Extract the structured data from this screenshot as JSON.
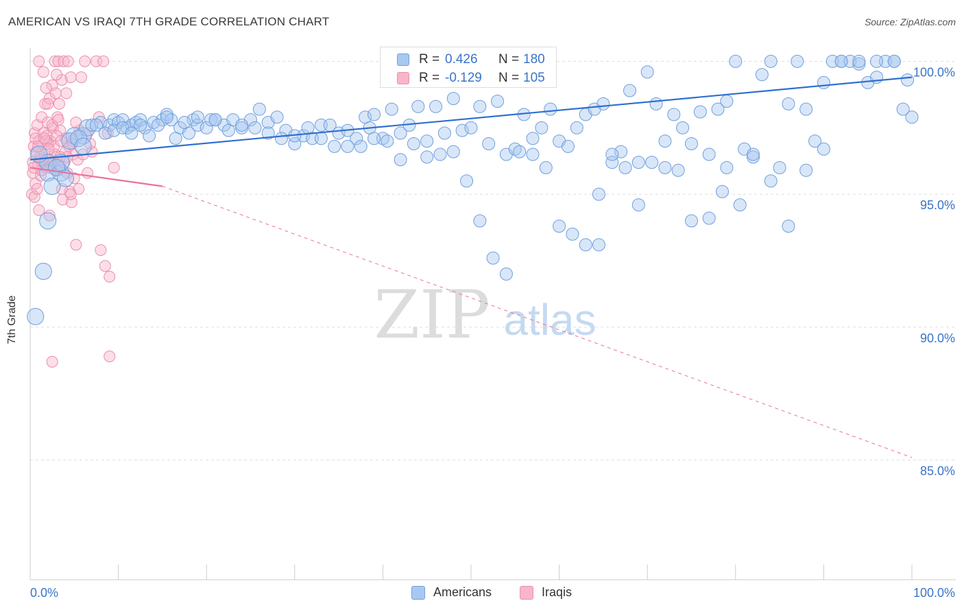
{
  "header": {
    "title": "AMERICAN VS IRAQI 7TH GRADE CORRELATION CHART",
    "source": "Source: ZipAtlas.com"
  },
  "watermark": {
    "zip": "ZIP",
    "atlas": "atlas"
  },
  "colors": {
    "blue_fill": "#a9c8f0",
    "blue_stroke": "#6f9fdc",
    "blue_line": "#2f6fd0",
    "blue_text": "#3a74c8",
    "pink_fill": "#f7b6cb",
    "pink_stroke": "#ec8fac",
    "pink_line": "#e8729c",
    "grid": "#dddddd",
    "axis": "#cccccc"
  },
  "legend_top": {
    "series": [
      {
        "r_label": "R =",
        "r_value": "0.426",
        "n_label": "N =",
        "n_value": "180"
      },
      {
        "r_label": "R =",
        "r_value": "-0.129",
        "n_label": "N =",
        "n_value": "105"
      }
    ]
  },
  "legend_bottom": {
    "items": [
      {
        "label": "Americans"
      },
      {
        "label": "Iraqis"
      }
    ]
  },
  "chart_data": {
    "type": "scatter",
    "title": "AMERICAN VS IRAQI 7TH GRADE CORRELATION CHART",
    "xlabel": "",
    "ylabel": "7th Grade",
    "xlim": [
      0,
      100
    ],
    "ylim": [
      80.5,
      100.5
    ],
    "x_tick_labels": [
      {
        "value": 0,
        "label": "0.0%"
      },
      {
        "value": 100,
        "label": "100.0%"
      }
    ],
    "y_ticks": [
      {
        "value": 100,
        "label": "100.0%"
      },
      {
        "value": 95,
        "label": "95.0%"
      },
      {
        "value": 90,
        "label": "90.0%"
      },
      {
        "value": 85,
        "label": "85.0%"
      }
    ],
    "x_minor_ticks": [
      10,
      20,
      30,
      40,
      50,
      60,
      70,
      80,
      90
    ],
    "series": [
      {
        "name": "Americans",
        "R": 0.426,
        "N": 180,
        "trend": {
          "x": [
            0,
            100
          ],
          "y": [
            96.3,
            99.4
          ],
          "style": "solid"
        },
        "points": [
          [
            0.6,
            90.4
          ],
          [
            1.5,
            92.1
          ],
          [
            2.0,
            94.0
          ],
          [
            2.0,
            95.8
          ],
          [
            2.0,
            96.2
          ],
          [
            2.5,
            95.3
          ],
          [
            3.5,
            95.8
          ],
          [
            3.5,
            96.2
          ],
          [
            5.0,
            97.2
          ],
          [
            6.0,
            97.2
          ],
          [
            6.5,
            97.5
          ],
          [
            7.0,
            97.6
          ],
          [
            8.0,
            97.7
          ],
          [
            9.0,
            97.6
          ],
          [
            9.5,
            97.8
          ],
          [
            10.0,
            97.7
          ],
          [
            10.5,
            97.8
          ],
          [
            11.0,
            97.5
          ],
          [
            11.5,
            97.6
          ],
          [
            12.0,
            97.7
          ],
          [
            12.5,
            97.8
          ],
          [
            13.0,
            97.5
          ],
          [
            14.0,
            97.7
          ],
          [
            15.0,
            97.8
          ],
          [
            15.5,
            98.0
          ],
          [
            16.0,
            97.8
          ],
          [
            17.0,
            97.5
          ],
          [
            18.0,
            97.3
          ],
          [
            18.5,
            97.8
          ],
          [
            19.0,
            97.6
          ],
          [
            20.0,
            97.5
          ],
          [
            20.5,
            97.8
          ],
          [
            21.0,
            97.8
          ],
          [
            22.0,
            97.6
          ],
          [
            23.0,
            97.8
          ],
          [
            24.0,
            97.5
          ],
          [
            25.0,
            97.8
          ],
          [
            26.0,
            98.2
          ],
          [
            27.0,
            97.7
          ],
          [
            28.0,
            97.9
          ],
          [
            29.0,
            97.4
          ],
          [
            30.0,
            96.9
          ],
          [
            31.0,
            97.2
          ],
          [
            32.0,
            97.1
          ],
          [
            33.0,
            97.6
          ],
          [
            34.0,
            97.6
          ],
          [
            35.0,
            97.3
          ],
          [
            36.0,
            97.4
          ],
          [
            37.0,
            97.1
          ],
          [
            38.0,
            97.9
          ],
          [
            38.5,
            97.5
          ],
          [
            39.0,
            98.0
          ],
          [
            40.0,
            97.1
          ],
          [
            41.0,
            98.2
          ],
          [
            42.0,
            97.3
          ],
          [
            43.0,
            97.6
          ],
          [
            44.0,
            98.3
          ],
          [
            45.0,
            97.0
          ],
          [
            46.0,
            98.3
          ],
          [
            47.0,
            97.3
          ],
          [
            48.0,
            98.6
          ],
          [
            49.0,
            97.4
          ],
          [
            50.0,
            97.5
          ],
          [
            51.0,
            98.3
          ],
          [
            52.0,
            96.9
          ],
          [
            53.0,
            98.5
          ],
          [
            54.0,
            96.5
          ],
          [
            55.0,
            96.7
          ],
          [
            56.0,
            98.0
          ],
          [
            57.0,
            97.1
          ],
          [
            58.0,
            97.5
          ],
          [
            59.0,
            98.2
          ],
          [
            60.0,
            97.0
          ],
          [
            61.0,
            96.8
          ],
          [
            62.0,
            97.5
          ],
          [
            63.0,
            98.0
          ],
          [
            64.0,
            98.2
          ],
          [
            64.5,
            95.0
          ],
          [
            65.0,
            98.4
          ],
          [
            66.0,
            96.2
          ],
          [
            67.0,
            96.6
          ],
          [
            68.0,
            98.9
          ],
          [
            69.0,
            96.2
          ],
          [
            70.0,
            99.6
          ],
          [
            71.0,
            98.4
          ],
          [
            72.0,
            97.0
          ],
          [
            73.0,
            98.0
          ],
          [
            74.0,
            97.5
          ],
          [
            75.0,
            96.9
          ],
          [
            76.0,
            98.1
          ],
          [
            77.0,
            96.5
          ],
          [
            78.0,
            98.2
          ],
          [
            78.5,
            95.1
          ],
          [
            79.0,
            98.5
          ],
          [
            80.0,
            100.0
          ],
          [
            81.0,
            96.7
          ],
          [
            82.0,
            96.4
          ],
          [
            83.0,
            99.5
          ],
          [
            84.0,
            100.0
          ],
          [
            85.0,
            96.0
          ],
          [
            86.0,
            98.4
          ],
          [
            87.0,
            100.0
          ],
          [
            88.0,
            98.2
          ],
          [
            89.0,
            97.0
          ],
          [
            90.0,
            96.7
          ],
          [
            91.0,
            100.0
          ],
          [
            92.0,
            100.0
          ],
          [
            93.0,
            100.0
          ],
          [
            94.0,
            99.9
          ],
          [
            95.0,
            99.2
          ],
          [
            96.0,
            99.4
          ],
          [
            97.0,
            100.0
          ],
          [
            98.0,
            100.0
          ],
          [
            99.0,
            98.2
          ],
          [
            100.0,
            97.9
          ],
          [
            1.0,
            96.5
          ],
          [
            3.0,
            96.0
          ],
          [
            4.0,
            95.6
          ],
          [
            4.5,
            97.0
          ],
          [
            5.5,
            97.1
          ],
          [
            6.0,
            96.8
          ],
          [
            7.5,
            97.6
          ],
          [
            8.5,
            97.3
          ],
          [
            9.5,
            97.4
          ],
          [
            10.5,
            97.5
          ],
          [
            11.5,
            97.3
          ],
          [
            12.5,
            97.6
          ],
          [
            13.5,
            97.2
          ],
          [
            14.5,
            97.6
          ],
          [
            15.5,
            97.9
          ],
          [
            16.5,
            97.1
          ],
          [
            17.5,
            97.7
          ],
          [
            19.0,
            97.9
          ],
          [
            21.0,
            97.8
          ],
          [
            22.5,
            97.4
          ],
          [
            24.0,
            97.6
          ],
          [
            25.5,
            97.5
          ],
          [
            27.0,
            97.3
          ],
          [
            28.5,
            97.1
          ],
          [
            30.0,
            97.2
          ],
          [
            31.5,
            97.5
          ],
          [
            33.0,
            97.1
          ],
          [
            34.5,
            96.8
          ],
          [
            36.0,
            96.8
          ],
          [
            37.5,
            96.8
          ],
          [
            39.0,
            97.1
          ],
          [
            40.5,
            97.0
          ],
          [
            42.0,
            96.3
          ],
          [
            43.5,
            96.9
          ],
          [
            45.0,
            96.4
          ],
          [
            46.5,
            96.5
          ],
          [
            48.0,
            96.6
          ],
          [
            49.5,
            95.5
          ],
          [
            51.0,
            94.0
          ],
          [
            52.5,
            92.6
          ],
          [
            54.0,
            92.0
          ],
          [
            55.5,
            96.6
          ],
          [
            57.0,
            96.5
          ],
          [
            58.5,
            96.0
          ],
          [
            60.0,
            93.8
          ],
          [
            61.5,
            93.5
          ],
          [
            63.0,
            93.1
          ],
          [
            64.5,
            93.1
          ],
          [
            66.0,
            96.5
          ],
          [
            67.5,
            96.0
          ],
          [
            69.0,
            94.6
          ],
          [
            70.5,
            96.2
          ],
          [
            72.0,
            96.0
          ],
          [
            73.5,
            95.9
          ],
          [
            75.0,
            94.0
          ],
          [
            77.0,
            94.1
          ],
          [
            79.0,
            96.0
          ],
          [
            80.5,
            94.6
          ],
          [
            82.0,
            96.5
          ],
          [
            84.0,
            95.5
          ],
          [
            86.0,
            93.8
          ],
          [
            88.0,
            95.9
          ],
          [
            90.0,
            99.2
          ],
          [
            92.0,
            100.0
          ],
          [
            94.0,
            100.0
          ],
          [
            96.0,
            100.0
          ],
          [
            98.0,
            100.0
          ],
          [
            99.5,
            99.3
          ]
        ]
      },
      {
        "name": "Iraqis",
        "R": -0.129,
        "N": 105,
        "trend": {
          "x": [
            0,
            15,
            100
          ],
          "y": [
            96.0,
            95.3,
            85.1
          ],
          "style": "solid-then-dashed"
        },
        "points": [
          [
            0.2,
            95.0
          ],
          [
            0.3,
            96.2
          ],
          [
            0.4,
            96.8
          ],
          [
            0.5,
            97.3
          ],
          [
            0.6,
            95.4
          ],
          [
            0.7,
            96.6
          ],
          [
            0.8,
            97.6
          ],
          [
            0.9,
            96.1
          ],
          [
            1.0,
            97.0
          ],
          [
            1.1,
            96.4
          ],
          [
            1.2,
            95.7
          ],
          [
            1.3,
            97.9
          ],
          [
            1.4,
            96.9
          ],
          [
            1.5,
            97.3
          ],
          [
            1.6,
            96.5
          ],
          [
            1.7,
            98.4
          ],
          [
            1.8,
            96.0
          ],
          [
            1.9,
            97.2
          ],
          [
            2.0,
            97.7
          ],
          [
            2.1,
            96.3
          ],
          [
            2.2,
            98.6
          ],
          [
            2.3,
            97.0
          ],
          [
            2.4,
            96.1
          ],
          [
            2.5,
            99.1
          ],
          [
            2.6,
            97.5
          ],
          [
            2.7,
            96.8
          ],
          [
            2.8,
            100.0
          ],
          [
            2.9,
            98.8
          ],
          [
            3.0,
            96.4
          ],
          [
            3.1,
            97.9
          ],
          [
            3.2,
            100.0
          ],
          [
            3.3,
            98.4
          ],
          [
            3.4,
            97.4
          ],
          [
            3.5,
            96.0
          ],
          [
            3.6,
            99.3
          ],
          [
            3.7,
            94.8
          ],
          [
            3.8,
            100.0
          ],
          [
            3.9,
            96.2
          ],
          [
            4.0,
            97.1
          ],
          [
            4.1,
            98.8
          ],
          [
            4.2,
            95.8
          ],
          [
            4.3,
            100.0
          ],
          [
            4.4,
            96.8
          ],
          [
            4.5,
            95.1
          ],
          [
            4.6,
            99.4
          ],
          [
            4.7,
            94.7
          ],
          [
            4.8,
            97.0
          ],
          [
            4.9,
            96.5
          ],
          [
            5.0,
            95.6
          ],
          [
            5.2,
            93.1
          ],
          [
            5.4,
            96.3
          ],
          [
            5.6,
            97.4
          ],
          [
            5.8,
            99.4
          ],
          [
            6.0,
            96.5
          ],
          [
            6.2,
            100.0
          ],
          [
            6.5,
            97.3
          ],
          [
            7.0,
            96.6
          ],
          [
            7.5,
            100.0
          ],
          [
            7.8,
            97.9
          ],
          [
            8.0,
            92.9
          ],
          [
            8.3,
            100.0
          ],
          [
            8.5,
            92.3
          ],
          [
            8.8,
            97.3
          ],
          [
            9.0,
            91.9
          ],
          [
            9.5,
            96.0
          ],
          [
            1.0,
            100.0
          ],
          [
            1.5,
            99.6
          ],
          [
            2.0,
            98.4
          ],
          [
            2.5,
            88.7
          ],
          [
            3.0,
            97.2
          ],
          [
            3.5,
            97.0
          ],
          [
            4.0,
            96.6
          ],
          [
            0.5,
            94.9
          ],
          [
            1.0,
            94.4
          ],
          [
            1.5,
            96.2
          ],
          [
            2.0,
            96.9
          ],
          [
            2.5,
            97.6
          ],
          [
            3.0,
            95.9
          ],
          [
            0.8,
            95.2
          ],
          [
            1.2,
            96.3
          ],
          [
            1.8,
            97.0
          ],
          [
            2.2,
            96.0
          ],
          [
            2.8,
            96.5
          ],
          [
            3.2,
            97.8
          ],
          [
            3.6,
            95.2
          ],
          [
            4.2,
            96.4
          ],
          [
            4.8,
            96.9
          ],
          [
            5.5,
            95.2
          ],
          [
            6.5,
            95.8
          ],
          [
            0.3,
            95.8
          ],
          [
            0.6,
            97.1
          ],
          [
            0.9,
            96.8
          ],
          [
            1.3,
            95.9
          ],
          [
            1.6,
            97.1
          ],
          [
            2.1,
            96.7
          ],
          [
            2.6,
            96.2
          ],
          [
            3.4,
            96.4
          ],
          [
            4.6,
            95.0
          ],
          [
            9.0,
            88.9
          ],
          [
            5.2,
            97.7
          ],
          [
            6.8,
            96.9
          ],
          [
            2.2,
            94.2
          ],
          [
            1.8,
            99.0
          ],
          [
            3.0,
            99.5
          ],
          [
            0.4,
            96.0
          ]
        ]
      }
    ]
  }
}
